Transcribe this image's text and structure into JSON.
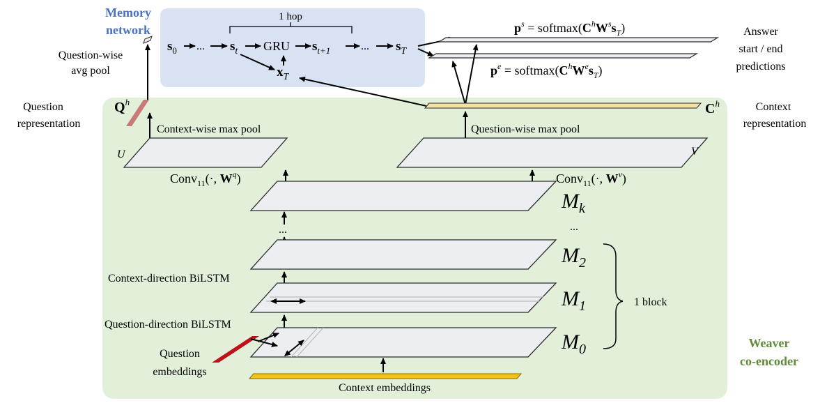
{
  "memory_network": {
    "title_line1": "Memory",
    "title_line2": "network",
    "hop_label": "1 hop",
    "s0": "s",
    "s0_sub": "0",
    "ellipsis": "...",
    "st": "s",
    "st_sub": "t",
    "gru": "GRU",
    "st1": "s",
    "st1_sub": "t+1",
    "sT": "s",
    "sT_sub": "T",
    "xT": "x",
    "xT_sub": "T"
  },
  "outputs": {
    "ps_formula": "p^s = softmax(C^h W^s s_T)",
    "ps_p": "p",
    "ps_sup": "s",
    "ps_rest": " = softmax(",
    "ps_C": "C",
    "ps_C_sup": "h",
    "ps_W": "W",
    "ps_W_sup": "s",
    "ps_s": "s",
    "ps_s_sub": "T",
    "ps_close": ")",
    "pe_p": "p",
    "pe_sup": "e",
    "pe_rest": " = softmax(",
    "pe_C": "C",
    "pe_C_sup": "h",
    "pe_W": "W",
    "pe_W_sup": "e",
    "pe_s": "s",
    "pe_s_sub": "T",
    "pe_close": ")",
    "answer_line1": "Answer",
    "answer_line2": "start / end",
    "answer_line3": "predictions"
  },
  "question_side": {
    "avg_pool_line1": "Question-wise",
    "avg_pool_line2": "avg pool",
    "qrep_line1": "Question",
    "qrep_line2": "representation",
    "Qh": "Q",
    "Qh_sup": "h",
    "context_max_pool": "Context-wise max pool",
    "U": "U",
    "conv_q_prefix": "Conv",
    "conv_q_sub": "11",
    "conv_q_args": "(·, ",
    "conv_q_W": "W",
    "conv_q_W_sup": "q",
    "conv_q_close": ")"
  },
  "context_side": {
    "Ch": "C",
    "Ch_sup": "h",
    "crep_line1": "Context",
    "crep_line2": "representation",
    "question_max_pool": "Question-wise max pool",
    "V": "V",
    "conv_v_prefix": "Conv",
    "conv_v_sub": "11",
    "conv_v_args": "(·, ",
    "conv_v_W": "W",
    "conv_v_W_sup": "v",
    "conv_v_close": ")"
  },
  "encoder": {
    "Mk": "M",
    "Mk_sub": "k",
    "dots_left": "...",
    "dots_right": "...",
    "M2": "M",
    "M2_sub": "2",
    "M1": "M",
    "M1_sub": "1",
    "M0": "M",
    "M0_sub": "0",
    "context_bilstm": "Context-direction BiLSTM",
    "question_bilstm": "Question-direction BiLSTM",
    "block_label": "1 block",
    "q_emb_line1": "Question",
    "q_emb_line2": "embeddings",
    "c_emb": "Context embeddings",
    "weaver_line1": "Weaver",
    "weaver_line2": "co-encoder"
  },
  "colors": {
    "memory_bg": "#d9e2f3",
    "encoder_bg": "#e2efd9",
    "slab_fill": "#eceef1",
    "question_rep": "#c97a78",
    "question_emb": "#c0111b",
    "context_emb": "#f2c215",
    "context_rep": "#f4e2a4",
    "title_blue": "#4a72c4",
    "title_green": "#5e8a3a"
  }
}
